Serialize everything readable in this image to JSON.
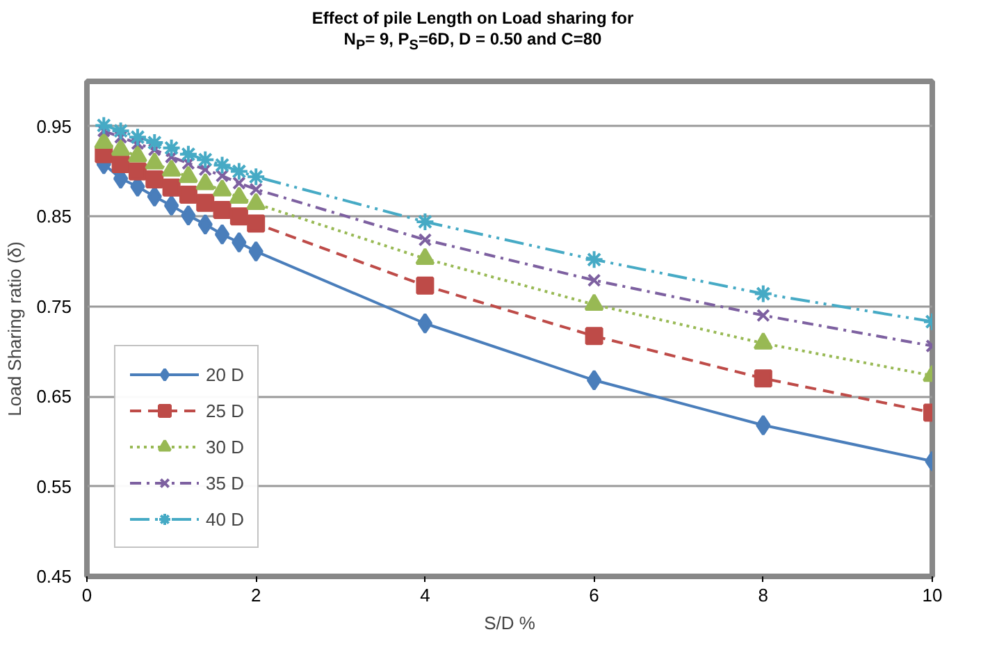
{
  "chart_data": {
    "type": "line",
    "title": "Effect of pile Length on Load sharing for\nN$_{P}$= 9, P$_{S}$=6D, D = 0.50 and C=80",
    "xlabel": "S/D %",
    "ylabel": "Load Sharing ratio (δ)",
    "x": [
      0.2,
      0.4,
      0.6,
      0.8,
      1.0,
      1.2,
      1.4,
      1.6,
      1.8,
      2.0,
      4,
      6,
      8,
      10
    ],
    "series": [
      {
        "name": "20 D",
        "color": "#4a7ebb",
        "marker": "diamond",
        "line_style": "solid",
        "values": [
          0.908,
          0.892,
          0.883,
          0.872,
          0.862,
          0.851,
          0.841,
          0.83,
          0.821,
          0.811,
          0.731,
          0.668,
          0.618,
          0.578
        ]
      },
      {
        "name": "25 D",
        "color": "#be4b48",
        "marker": "square",
        "line_style": "dashed",
        "values": [
          0.919,
          0.908,
          0.9,
          0.891,
          0.882,
          0.874,
          0.865,
          0.857,
          0.85,
          0.842,
          0.773,
          0.717,
          0.67,
          0.632
        ]
      },
      {
        "name": "30 D",
        "color": "#98b954",
        "marker": "triangle",
        "line_style": "dotted",
        "values": [
          0.932,
          0.924,
          0.917,
          0.909,
          0.901,
          0.894,
          0.886,
          0.879,
          0.871,
          0.864,
          0.803,
          0.752,
          0.709,
          0.673
        ]
      },
      {
        "name": "35 D",
        "color": "#7d60a0",
        "marker": "cross",
        "line_style": "dashdot",
        "values": [
          0.945,
          0.938,
          0.931,
          0.924,
          0.916,
          0.909,
          0.902,
          0.895,
          0.887,
          0.88,
          0.824,
          0.779,
          0.74,
          0.706
        ]
      },
      {
        "name": "40 D",
        "color": "#46aac5",
        "marker": "cross",
        "line_style": "dashdotdot",
        "values": [
          0.951,
          0.945,
          0.938,
          0.932,
          0.926,
          0.919,
          0.913,
          0.907,
          0.9,
          0.894,
          0.844,
          0.802,
          0.764,
          0.733
        ]
      }
    ],
    "xlim": [
      0,
      10
    ],
    "xticks": [
      0,
      2,
      4,
      6,
      8,
      10
    ],
    "ylim": [
      0.45,
      1.0
    ],
    "yticks": [
      {
        "value": 0.45,
        "label": "0.45"
      },
      {
        "value": 0.55,
        "label": "0.55"
      },
      {
        "value": 0.65,
        "label": "0.65"
      },
      {
        "value": 0.75,
        "label": "0.75"
      },
      {
        "value": 0.85,
        "label": "0.85"
      },
      {
        "value": 0.95,
        "label": "0.95"
      }
    ],
    "grid": "y",
    "legend": "bottom left"
  }
}
